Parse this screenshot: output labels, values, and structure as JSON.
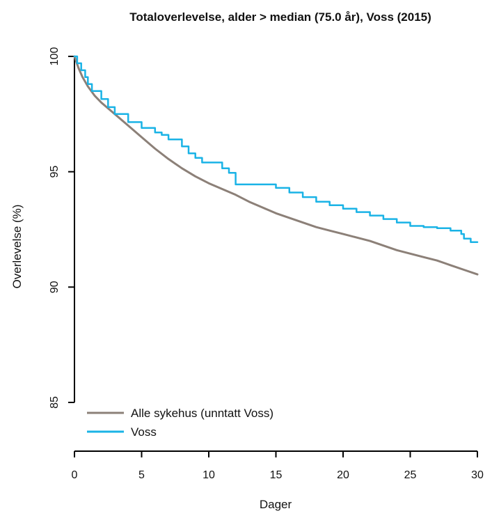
{
  "chart_data": {
    "type": "line",
    "title": "Totaloverlevelse, alder > median (75.0 år), Voss (2015)",
    "xlabel": "Dager",
    "ylabel": "Overlevelse (%)",
    "xlim": [
      0,
      30
    ],
    "ylim": [
      85,
      100
    ],
    "x_ticks": [
      0,
      5,
      10,
      15,
      20,
      25,
      30
    ],
    "y_ticks": [
      85,
      90,
      95,
      100
    ],
    "grid": false,
    "legend_position": "bottom-left",
    "series": [
      {
        "name": "Alle sykehus (unntatt Voss)",
        "color": "#8c8078",
        "step": false,
        "points": [
          [
            0,
            100
          ],
          [
            0.3,
            99.5
          ],
          [
            0.6,
            99.1
          ],
          [
            1.0,
            98.7
          ],
          [
            1.5,
            98.3
          ],
          [
            2.0,
            98.0
          ],
          [
            2.5,
            97.75
          ],
          [
            3.0,
            97.5
          ],
          [
            4.0,
            97.0
          ],
          [
            5.0,
            96.5
          ],
          [
            6.0,
            96.0
          ],
          [
            7.0,
            95.55
          ],
          [
            8.0,
            95.15
          ],
          [
            9.0,
            94.8
          ],
          [
            10.0,
            94.5
          ],
          [
            11.0,
            94.25
          ],
          [
            12.0,
            94.0
          ],
          [
            13.0,
            93.7
          ],
          [
            14.0,
            93.45
          ],
          [
            15.0,
            93.2
          ],
          [
            16.0,
            93.0
          ],
          [
            17.0,
            92.8
          ],
          [
            18.0,
            92.6
          ],
          [
            19.0,
            92.45
          ],
          [
            20.0,
            92.3
          ],
          [
            21.0,
            92.15
          ],
          [
            22.0,
            92.0
          ],
          [
            23.0,
            91.8
          ],
          [
            24.0,
            91.6
          ],
          [
            25.0,
            91.45
          ],
          [
            26.0,
            91.3
          ],
          [
            27.0,
            91.15
          ],
          [
            28.0,
            90.95
          ],
          [
            29.0,
            90.75
          ],
          [
            30.0,
            90.55
          ]
        ]
      },
      {
        "name": "Voss",
        "color": "#1ab3e6",
        "step": true,
        "points": [
          [
            0,
            100
          ],
          [
            0.2,
            99.7
          ],
          [
            0.5,
            99.4
          ],
          [
            0.8,
            99.1
          ],
          [
            1.0,
            98.8
          ],
          [
            1.3,
            98.5
          ],
          [
            2.0,
            98.15
          ],
          [
            2.5,
            97.8
          ],
          [
            3.0,
            97.5
          ],
          [
            4.0,
            97.15
          ],
          [
            5.0,
            96.9
          ],
          [
            6.0,
            96.7
          ],
          [
            6.5,
            96.6
          ],
          [
            7.0,
            96.4
          ],
          [
            8.0,
            96.1
          ],
          [
            8.5,
            95.8
          ],
          [
            9.0,
            95.6
          ],
          [
            9.5,
            95.4
          ],
          [
            11.0,
            95.15
          ],
          [
            11.5,
            94.95
          ],
          [
            12.0,
            94.45
          ],
          [
            15.0,
            94.3
          ],
          [
            16.0,
            94.1
          ],
          [
            17.0,
            93.9
          ],
          [
            18.0,
            93.7
          ],
          [
            19.0,
            93.55
          ],
          [
            20.0,
            93.4
          ],
          [
            21.0,
            93.25
          ],
          [
            22.0,
            93.1
          ],
          [
            23.0,
            92.95
          ],
          [
            24.0,
            92.8
          ],
          [
            25.0,
            92.65
          ],
          [
            26.0,
            92.6
          ],
          [
            27.0,
            92.55
          ],
          [
            28.0,
            92.45
          ],
          [
            28.8,
            92.3
          ],
          [
            29.0,
            92.1
          ],
          [
            29.5,
            91.95
          ],
          [
            30.0,
            91.95
          ]
        ]
      }
    ]
  }
}
